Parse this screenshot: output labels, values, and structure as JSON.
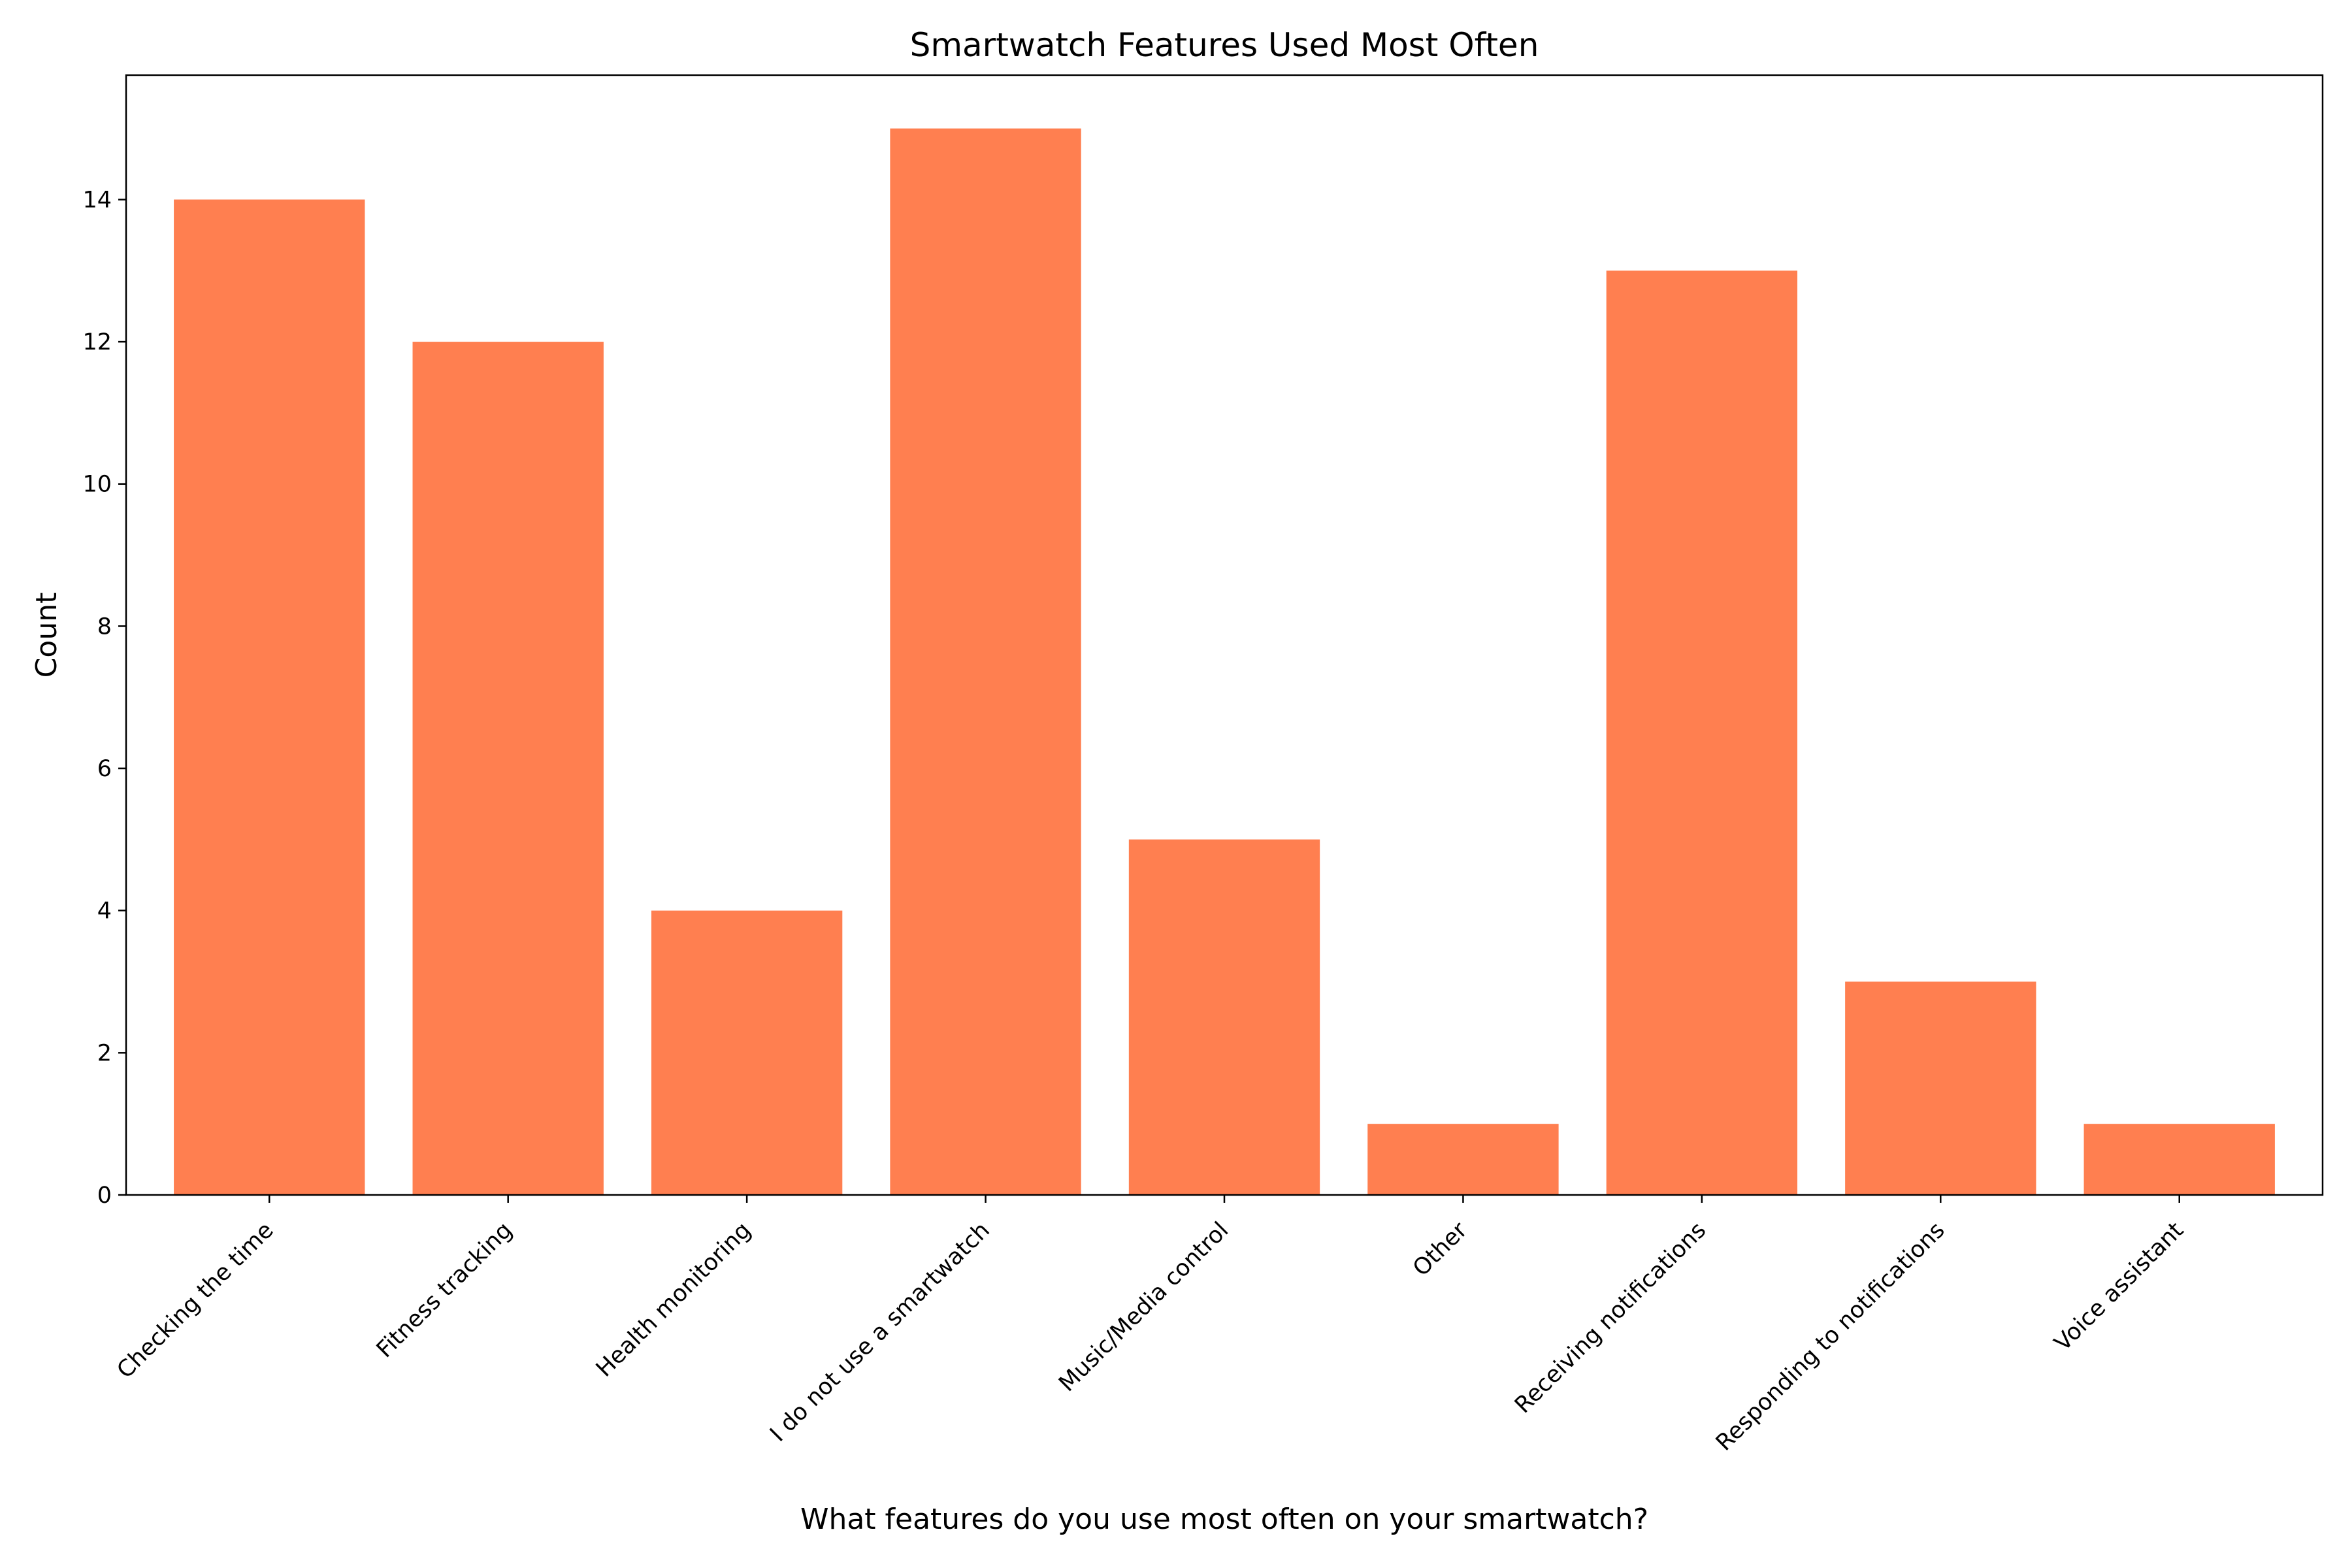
{
  "chart_data": {
    "type": "bar",
    "title": "Smartwatch Features Used Most Often",
    "xlabel": "What features do you use most often on your smartwatch?",
    "ylabel": "Count",
    "categories": [
      "Checking the time",
      "Fitness tracking",
      "Health monitoring",
      "I do not use a smartwatch",
      "Music/Media control",
      "Other",
      "Receiving notifications",
      "Responding to notifications",
      "Voice assistant"
    ],
    "values": [
      14,
      12,
      4,
      15,
      5,
      1,
      13,
      3,
      1
    ],
    "ylim": [
      0,
      15.75
    ],
    "yticks": [
      0,
      2,
      4,
      6,
      8,
      10,
      12,
      14
    ],
    "bar_color": "#ff7f50",
    "grid": false,
    "legend": "none"
  }
}
